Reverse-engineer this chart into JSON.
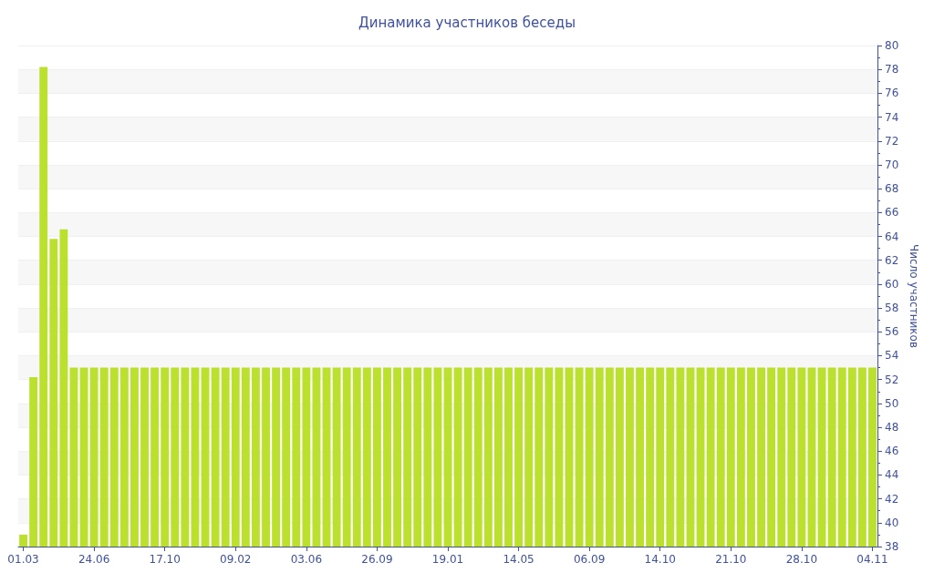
{
  "chart_data": {
    "type": "bar",
    "title": "Динамика участников беседы",
    "ylabel": "Число участников",
    "categories": [
      "01.03",
      null,
      null,
      null,
      null,
      null,
      null,
      "24.06",
      null,
      null,
      null,
      null,
      null,
      null,
      "17.10",
      null,
      null,
      null,
      null,
      null,
      null,
      "09.02",
      null,
      null,
      null,
      null,
      null,
      null,
      "03.06",
      null,
      null,
      null,
      null,
      null,
      null,
      "26.09",
      null,
      null,
      null,
      null,
      null,
      null,
      "19.01",
      null,
      null,
      null,
      null,
      null,
      null,
      "14.05",
      null,
      null,
      null,
      null,
      null,
      null,
      "06.09",
      null,
      null,
      null,
      null,
      null,
      null,
      "14.10",
      null,
      null,
      null,
      null,
      null,
      null,
      "21.10",
      null,
      null,
      null,
      null,
      null,
      null,
      "28.10",
      null,
      null,
      null,
      null,
      null,
      null,
      "04.11"
    ],
    "values": [
      39,
      52.2,
      78.2,
      63.8,
      64.6,
      53,
      53,
      53,
      53,
      53,
      53,
      53,
      53,
      53,
      53,
      53,
      53,
      53,
      53,
      53,
      53,
      53,
      53,
      53,
      53,
      53,
      53,
      53,
      53,
      53,
      53,
      53,
      53,
      53,
      53,
      53,
      53,
      53,
      53,
      53,
      53,
      53,
      53,
      53,
      53,
      53,
      53,
      53,
      53,
      53,
      53,
      53,
      53,
      53,
      53,
      53,
      53,
      53,
      53,
      53,
      53,
      53,
      53,
      53,
      53,
      53,
      53,
      53,
      53,
      53,
      53,
      53,
      53,
      53,
      53,
      53,
      53,
      53,
      53,
      53,
      53,
      53,
      53,
      53,
      53
    ],
    "color": "#bbe02e",
    "ylim": [
      38,
      80
    ],
    "yticks": [
      38,
      40,
      42,
      44,
      46,
      48,
      50,
      52,
      54,
      56,
      58,
      60,
      62,
      64,
      66,
      68,
      70,
      72,
      74,
      76,
      78,
      80
    ],
    "grid": "y"
  }
}
